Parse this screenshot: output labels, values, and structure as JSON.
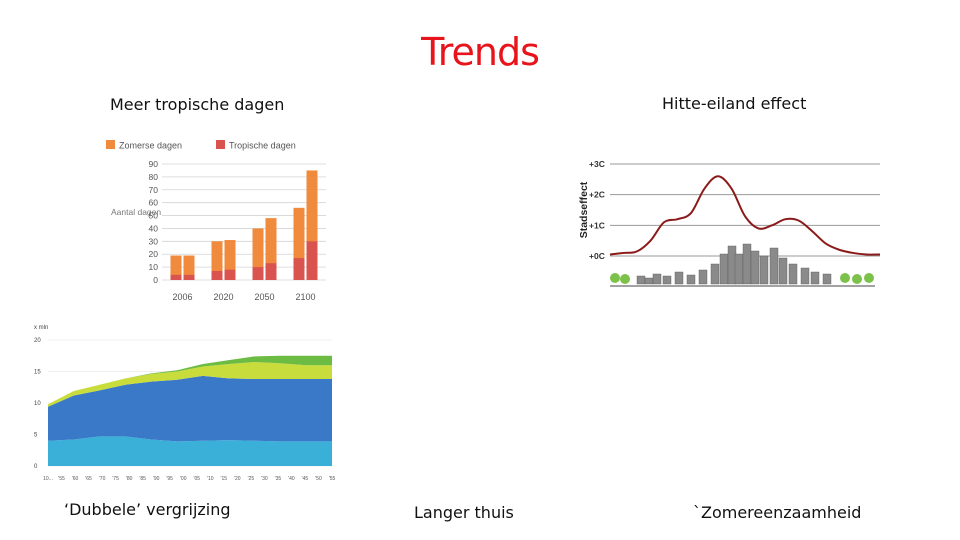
{
  "slide": {
    "title": "Trends",
    "captions": {
      "tropic": "Meer tropische dagen",
      "heat": "Hitte-eiland effect",
      "aging": "‘Dubbele’ vergrijzing",
      "home": "Langer thuis",
      "lonely": "`Zomereenzaamheid"
    }
  },
  "chart_data": [
    {
      "type": "bar",
      "ylabel": "Aantal dagen",
      "categories": [
        "2006",
        "2020",
        "2050",
        "2100"
      ],
      "y_ticks": [
        "0",
        "10",
        "20",
        "30",
        "40",
        "50",
        "60",
        "70",
        "80",
        "90"
      ],
      "ylim": [
        0,
        90
      ],
      "legend": [
        "Zomerse dagen",
        "Tropische dagen"
      ],
      "colors": {
        "summer": "#f08a3c",
        "tropic": "#d9534f"
      },
      "series": [
        {
          "name": "Zomerse dagen",
          "values": [
            [
              19,
              19
            ],
            [
              30,
              31
            ],
            [
              40,
              48
            ],
            [
              56,
              85
            ]
          ]
        },
        {
          "name": "Tropische dagen",
          "values": [
            [
              4,
              4
            ],
            [
              7,
              8
            ],
            [
              10,
              13
            ],
            [
              17,
              30
            ]
          ]
        }
      ],
      "grid": true
    },
    {
      "type": "line",
      "ylabel": "Stadseffect",
      "y_ticks": [
        "+0C",
        "+1C",
        "+2C",
        "+3C"
      ],
      "ylim": [
        0,
        3
      ],
      "x": [
        0,
        1,
        2,
        3,
        4,
        5,
        6,
        7,
        8,
        9,
        10,
        11,
        12,
        13,
        14,
        15,
        16,
        17,
        18,
        19,
        20
      ],
      "values": [
        0.05,
        0.1,
        0.15,
        0.5,
        1.1,
        1.2,
        1.4,
        2.2,
        2.6,
        2.2,
        1.3,
        0.9,
        1.0,
        1.2,
        1.15,
        0.8,
        0.4,
        0.2,
        0.1,
        0.05,
        0.05
      ],
      "line_color": "#8b1a1a",
      "grid": true
    },
    {
      "type": "area",
      "ylabel": "x mln",
      "y_ticks": [
        "0",
        "5",
        "10",
        "15",
        "20"
      ],
      "x_ticks": [
        "10...",
        "'55",
        "'60",
        "'65",
        "'70",
        "'75",
        "'80",
        "'85",
        "'90",
        "'95",
        "'00",
        "'05",
        "'10",
        "'15",
        "'20",
        "'25",
        "'30",
        "'35",
        "'40",
        "'45",
        "'50",
        "'55"
      ],
      "ylim": [
        0,
        20
      ],
      "x": [
        1950,
        1960,
        1970,
        1980,
        1990,
        2000,
        2010,
        2020,
        2030,
        2040,
        2050,
        2060
      ],
      "series": [
        {
          "name": "",
          "color": "#3ab0d8",
          "values": [
            4.0,
            4.2,
            4.7,
            4.7,
            4.2,
            3.9,
            4.0,
            4.1,
            4.0,
            3.9,
            3.9,
            3.9
          ]
        },
        {
          "name": "",
          "color": "#3a78c8",
          "values": [
            5.4,
            7.0,
            7.3,
            8.2,
            9.2,
            9.8,
            10.3,
            9.8,
            9.8,
            9.9,
            9.9,
            9.9
          ]
        },
        {
          "name": "",
          "color": "#c8dc3c",
          "values": [
            0.4,
            0.7,
            0.9,
            1.0,
            1.2,
            1.3,
            1.5,
            2.3,
            2.7,
            2.5,
            2.2,
            2.2
          ]
        },
        {
          "name": "",
          "color": "#6cbc44",
          "values": [
            0.0,
            0.0,
            0.0,
            0.0,
            0.1,
            0.2,
            0.4,
            0.6,
            0.9,
            1.2,
            1.5,
            1.5
          ]
        }
      ],
      "grid": true
    }
  ]
}
